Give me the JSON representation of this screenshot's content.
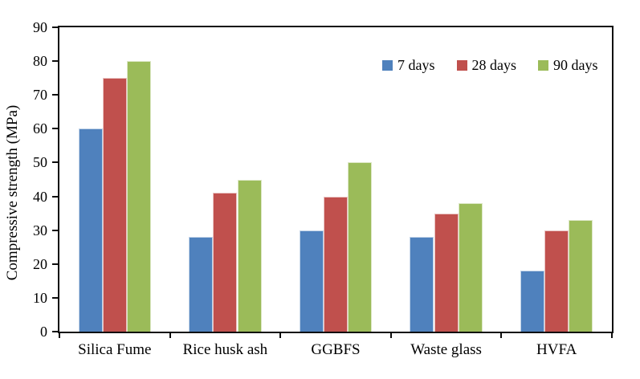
{
  "chart_data": {
    "type": "bar",
    "title": "",
    "xlabel": "",
    "ylabel": "Compressive strength (MPa)",
    "categories": [
      "Silica Fume",
      "Rice husk ash",
      "GGBFS",
      "Waste glass",
      "HVFA"
    ],
    "series": [
      {
        "name": "7 days",
        "color": "#4F81BD",
        "values": [
          60,
          28,
          30,
          28,
          18
        ]
      },
      {
        "name": "28 days",
        "color": "#C0504D",
        "values": [
          75,
          41,
          40,
          35,
          30
        ]
      },
      {
        "name": "90 days",
        "color": "#9BBB59",
        "values": [
          80,
          45,
          50,
          38,
          33
        ]
      }
    ],
    "ylim": [
      0,
      90
    ],
    "yticks": [
      0,
      10,
      20,
      30,
      40,
      50,
      60,
      70,
      80,
      90
    ],
    "grid": false,
    "legend_position": "top-right-inside",
    "legend_labels": [
      "7 days",
      "28 days",
      "90 days"
    ]
  }
}
